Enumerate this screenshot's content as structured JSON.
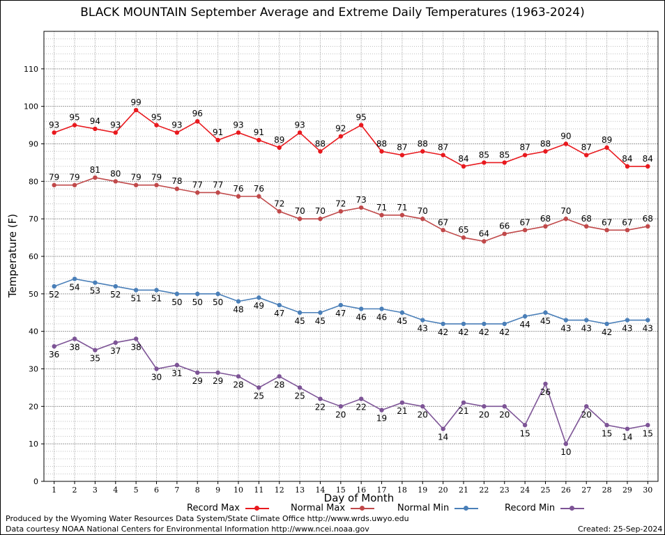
{
  "title": "BLACK MOUNTAIN September Average and Extreme Daily Temperatures (1963-2024)",
  "footer": {
    "produced_by": "Produced by the Wyoming Water Resources Data System/State Climate Office http://www.wrds.uwyo.edu",
    "data_courtesy": "Data courtesy NOAA National Centers for Environmental Information http://www.ncei.noaa.gov",
    "created": "Created: 25-Sep-2024"
  },
  "chart_data": {
    "type": "line",
    "title": "BLACK MOUNTAIN September Average and Extreme Daily Temperatures (1963-2024)",
    "xlabel": "Day of Month",
    "ylabel": "Temperature (F)",
    "x": [
      1,
      2,
      3,
      4,
      5,
      6,
      7,
      8,
      9,
      10,
      11,
      12,
      13,
      14,
      15,
      16,
      17,
      18,
      19,
      20,
      21,
      22,
      23,
      24,
      25,
      26,
      27,
      28,
      29,
      30
    ],
    "xlim": [
      0.5,
      30.5
    ],
    "ylim": [
      0,
      120
    ],
    "yticks": [
      0,
      10,
      20,
      30,
      40,
      50,
      60,
      70,
      80,
      90,
      100,
      110
    ],
    "grid": true,
    "legend_position": "bottom",
    "series": [
      {
        "name": "Record Max",
        "color": "#e8191e",
        "label_position": "above",
        "values": [
          93,
          95,
          94,
          93,
          99,
          95,
          93,
          96,
          91,
          93,
          91,
          89,
          93,
          88,
          92,
          95,
          88,
          87,
          88,
          87,
          84,
          85,
          85,
          87,
          88,
          90,
          87,
          89,
          84,
          84
        ]
      },
      {
        "name": "Normal Max",
        "color": "#c0494a",
        "label_position": "above",
        "values": [
          79,
          79,
          81,
          80,
          79,
          79,
          78,
          77,
          77,
          76,
          76,
          72,
          70,
          70,
          72,
          73,
          71,
          71,
          70,
          67,
          65,
          64,
          66,
          67,
          68,
          70,
          68,
          67,
          67,
          68
        ]
      },
      {
        "name": "Normal Min",
        "color": "#4a7fb8",
        "label_position": "below",
        "values": [
          52,
          54,
          53,
          52,
          51,
          51,
          50,
          50,
          50,
          48,
          49,
          47,
          45,
          45,
          47,
          46,
          46,
          45,
          43,
          42,
          42,
          42,
          42,
          44,
          45,
          43,
          43,
          42,
          43,
          43
        ]
      },
      {
        "name": "Record Min",
        "color": "#7d5496",
        "label_position": "below",
        "values": [
          36,
          38,
          35,
          37,
          38,
          30,
          31,
          29,
          29,
          28,
          25,
          28,
          25,
          22,
          20,
          22,
          19,
          21,
          20,
          14,
          21,
          20,
          20,
          15,
          26,
          10,
          20,
          15,
          14,
          15
        ]
      }
    ]
  }
}
